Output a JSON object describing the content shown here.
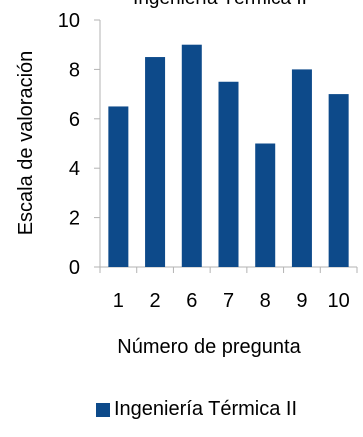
{
  "chart_data": {
    "type": "bar",
    "title": "Ingeniería Térmica II",
    "xlabel": "Número de pregunta",
    "ylabel": "Escala de valoración",
    "categories": [
      "1",
      "2",
      "6",
      "7",
      "8",
      "9",
      "10"
    ],
    "series": [
      {
        "name": "Ingeniería Térmica II",
        "values": [
          6.5,
          8.5,
          9,
          7.5,
          5,
          8,
          7
        ]
      }
    ],
    "ylim": [
      0,
      10
    ],
    "yticks": [
      0,
      2,
      4,
      6,
      8,
      10
    ],
    "grid": false,
    "legend": "bottom"
  },
  "colors": {
    "bar": "#0d4a8a",
    "axis": "#b3b3b3",
    "text": "#000000"
  }
}
